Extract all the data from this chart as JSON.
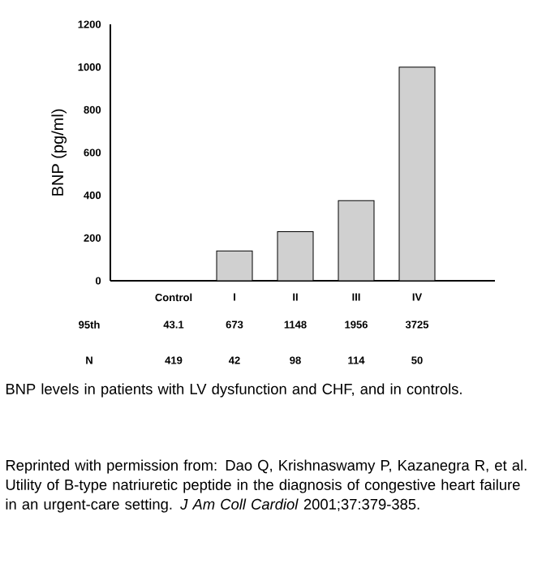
{
  "chart_data": {
    "type": "bar",
    "ylabel": "BNP (pg/ml)",
    "categories": [
      "Control",
      "I",
      "II",
      "III",
      "IV"
    ],
    "values": [
      0,
      140,
      230,
      375,
      1000
    ],
    "color": "#d0d0d0",
    "ylim": [
      0,
      1200
    ],
    "yticks": [
      0,
      200,
      400,
      600,
      800,
      1000,
      1200
    ],
    "annotations": [
      "95th",
      "43.1",
      "673",
      "1148",
      "1956",
      "3725",
      "N",
      "419",
      "42",
      "98",
      "114",
      "50",
      "BNP levels in patients with LV dysfunction and CHF, and in controls.",
      "Reprinted with permission from: Dao Q, Krishnaswamy P, Kazanegra R, et al. Utility of B-type natriuretic peptide in the diagnosis of congestive heart failure in an urgent-care setting. *J Am Coll Cardiol* 2001;37:379-385."
    ]
  }
}
